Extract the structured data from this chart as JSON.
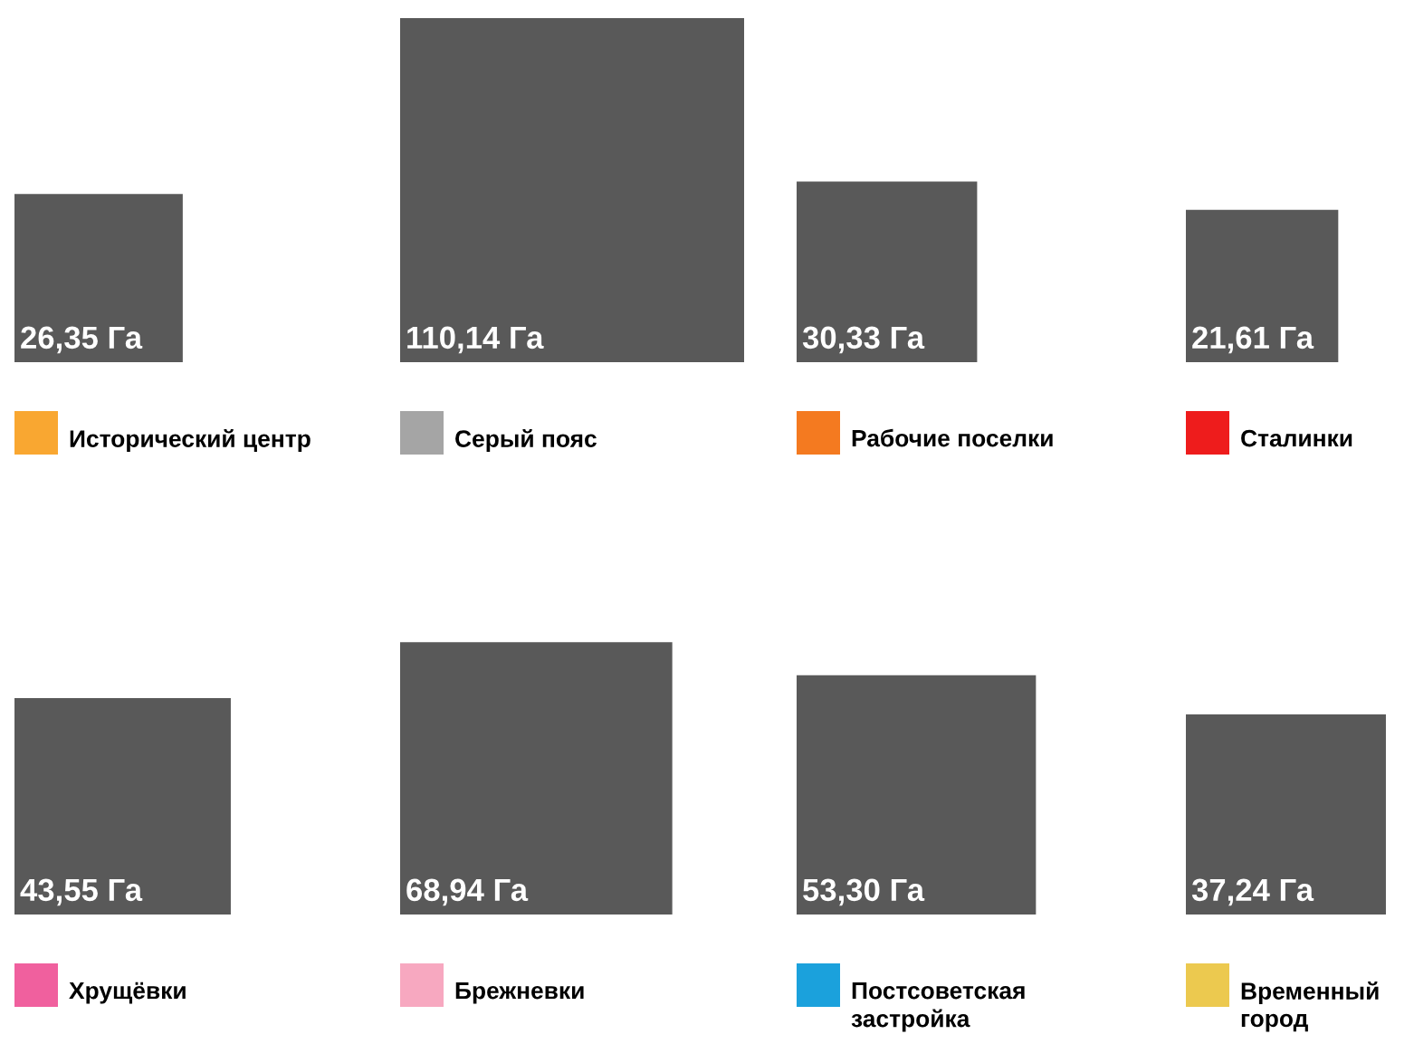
{
  "chart_data": {
    "type": "other",
    "categories": [
      "Исторический центр",
      "Серый пояс",
      "Рабочие поселки",
      "Сталинки",
      "Хрущёвки",
      "Брежневки",
      "Постсоветская\nзастройка",
      "Временный\nгород"
    ],
    "values": [
      26.35,
      110.14,
      30.33,
      21.61,
      43.55,
      68.94,
      53.3,
      37.24
    ],
    "value_labels": [
      "26,35 Га",
      "110,14 Га",
      "30,33 Га",
      "21,61 Га",
      "43,55 Га",
      "68,94 Га",
      "53,30 Га",
      "37,24 Га"
    ],
    "colors": [
      "#595959",
      "#595959",
      "#595959",
      "#595959",
      "#595959",
      "#595959",
      "#595959",
      "#595959"
    ]
  }
}
